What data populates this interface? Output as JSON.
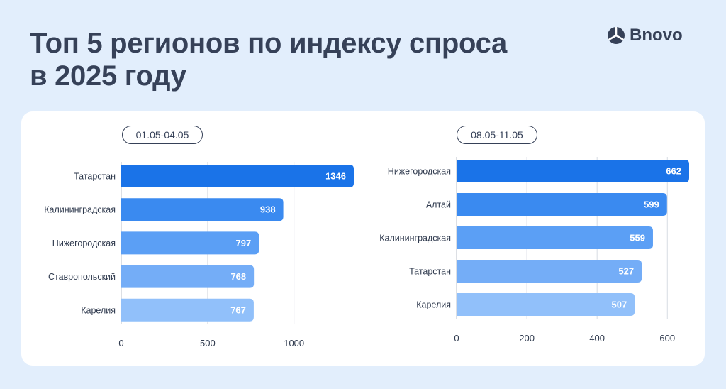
{
  "header": {
    "title_line1": "Топ 5 регионов по индексу спроса",
    "title_line2": "в 2025 году"
  },
  "brand": {
    "name": "Bnovo",
    "icon": "bnovo-logo-icon"
  },
  "colors": {
    "title": "#364158",
    "bars": [
      "#1a73e8",
      "#3a8af0",
      "#5b9ff5",
      "#74adf7",
      "#91c0fa"
    ],
    "grid": "#d8dce3"
  },
  "chart_data": [
    {
      "type": "bar",
      "orientation": "horizontal",
      "period": "01.05-04.05",
      "categories": [
        "Татарстан",
        "Калининградская",
        "Нижегородская",
        "Ставропольский",
        "Карелия"
      ],
      "values": [
        1346,
        938,
        797,
        768,
        767
      ],
      "xlim": [
        0,
        1346
      ],
      "xticks": [
        0,
        500,
        1000
      ],
      "grid": "vertical"
    },
    {
      "type": "bar",
      "orientation": "horizontal",
      "period": "08.05-11.05",
      "categories": [
        "Нижегородская",
        "Алтай",
        "Калининградская",
        "Татарстан",
        "Карелия"
      ],
      "values": [
        662,
        599,
        559,
        527,
        507
      ],
      "xlim": [
        0,
        662
      ],
      "xticks": [
        0,
        200,
        400,
        600
      ],
      "grid": "vertical"
    }
  ]
}
